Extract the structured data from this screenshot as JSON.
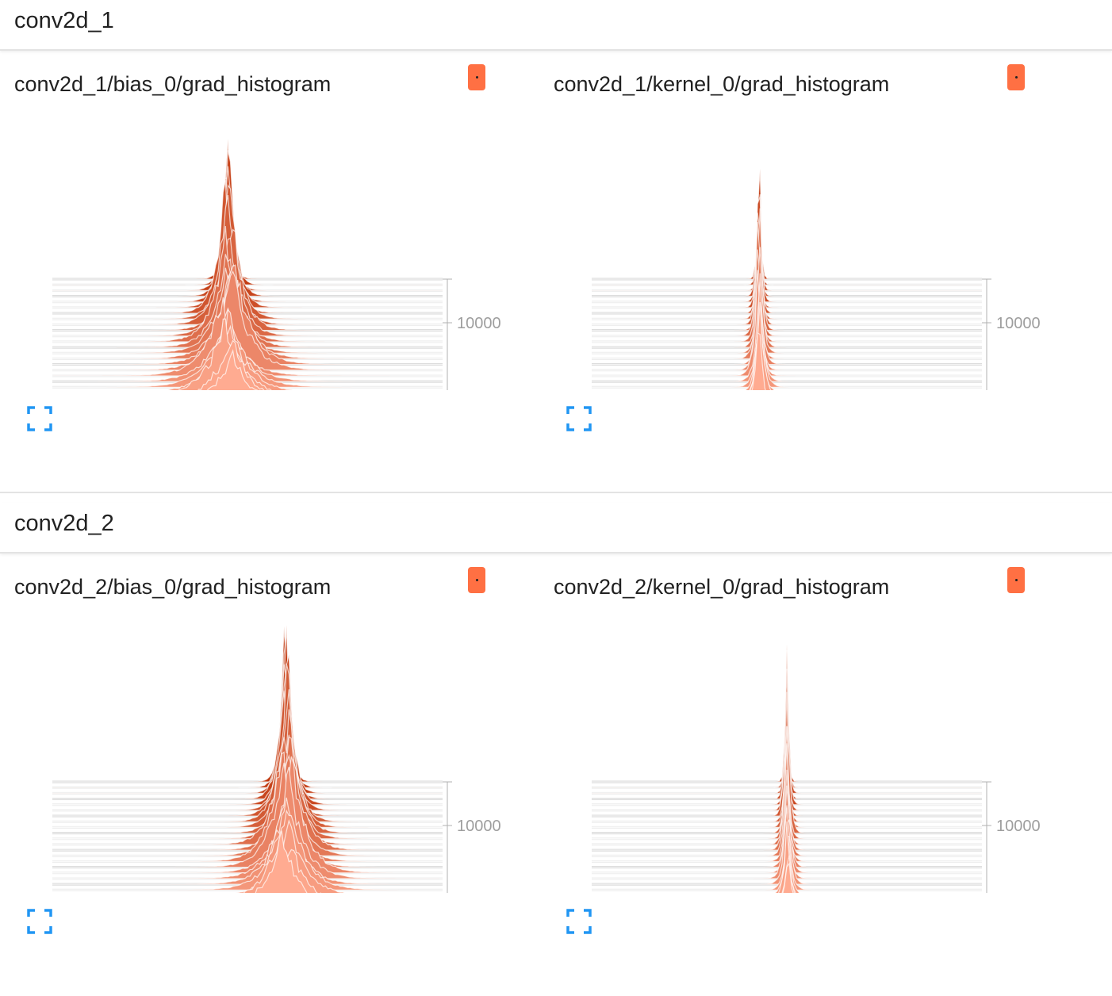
{
  "colors": {
    "back_layer": "#bf360c",
    "front_layer": "#ffab91",
    "outline": "#ffffff",
    "swatch": "#ff7043",
    "expand_icon": "#2196f3",
    "axis": "#b0b0b0"
  },
  "sections": [
    {
      "title": "conv2d_1",
      "cards": [
        {
          "title": "conv2d_1/bias_0/grad_histogram",
          "swatch_icon": "run-color-swatch",
          "expand_icon": "fullscreen-icon",
          "chart_data": {
            "type": "histogram-offset",
            "x_ticks": [
              "-0.0008",
              "-0.0004",
              "0.0000",
              "0.0004",
              "0.0008",
              "0.0012",
              "0.0016"
            ],
            "x_range": [
              -0.00128,
              0.00158
            ],
            "y_ticks": [
              "10000",
              "20000"
            ],
            "y_range": [
              5000,
              20000
            ],
            "center": 0.0,
            "spread_back": 4e-05,
            "spread_front": 0.00022,
            "peak_back": 0.75,
            "peak_front": 0.25
          }
        },
        {
          "title": "conv2d_1/kernel_0/grad_histogram",
          "swatch_icon": "run-color-swatch",
          "expand_icon": "fullscreen-icon",
          "chart_data": {
            "type": "histogram-offset",
            "x_ticks": [
              "-0.05",
              "-0.03",
              "-0.01",
              "0.01",
              "0.03",
              "0.05",
              "0.07"
            ],
            "x_range": [
              -0.06,
              0.08
            ],
            "y_ticks": [
              "10000",
              "20000"
            ],
            "y_range": [
              5000,
              20000
            ],
            "center": 0.0,
            "spread_back": 0.0007,
            "spread_front": 0.0022,
            "peak_back": 0.82,
            "peak_front": 0.35
          }
        }
      ]
    },
    {
      "title": "conv2d_2",
      "cards": [
        {
          "title": "conv2d_2/bias_0/grad_histogram",
          "swatch_icon": "run-color-swatch",
          "expand_icon": "fullscreen-icon",
          "chart_data": {
            "type": "histogram-offset",
            "x_ticks": [
              "-0.0008",
              "-0.0004",
              "0.0000",
              "0.0004",
              "0.0008"
            ],
            "x_range": [
              -0.00118,
              0.0008
            ],
            "y_ticks": [
              "10000",
              "20000"
            ],
            "y_range": [
              5000,
              20000
            ],
            "center": 0.0,
            "spread_back": 3e-05,
            "spread_front": 0.00013,
            "peak_back": 0.78,
            "peak_front": 0.3
          }
        },
        {
          "title": "conv2d_2/kernel_0/grad_histogram",
          "swatch_icon": "run-color-swatch",
          "expand_icon": "fullscreen-icon",
          "chart_data": {
            "type": "histogram-offset",
            "x_ticks": [
              "-0.035",
              "-0.025",
              "-0.015",
              "-0.005",
              "0.005",
              "0.015",
              "0.025",
              "0.035"
            ],
            "x_range": [
              -0.0395,
              0.0395
            ],
            "y_ticks": [
              "10000",
              "20000"
            ],
            "y_range": [
              5000,
              20000
            ],
            "center": 0.0,
            "spread_back": 0.0004,
            "spread_front": 0.0011,
            "peak_back": 0.8,
            "peak_front": 0.3
          }
        }
      ]
    }
  ]
}
